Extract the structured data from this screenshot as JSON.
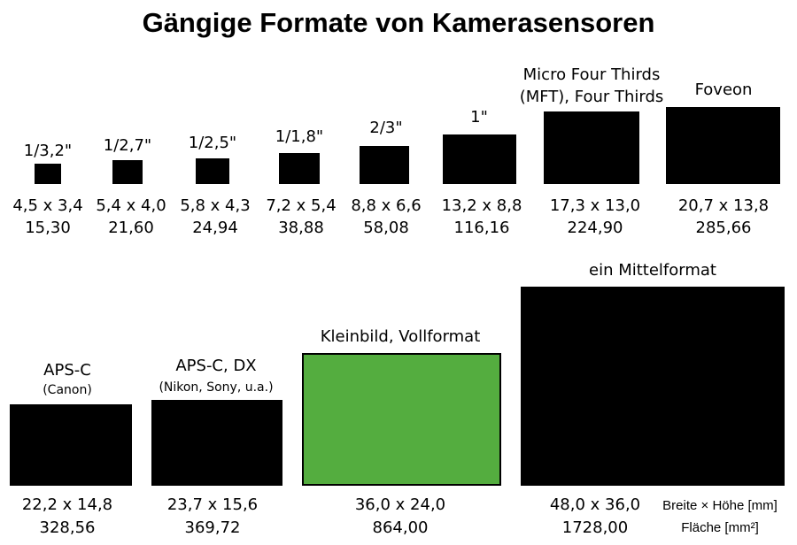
{
  "title": "Gängige Formate von Kamerasensoren",
  "sensors": [
    {
      "name": "1/3,2\"",
      "dims": "4,5 x 3,4",
      "area": "15,30"
    },
    {
      "name": "1/2,7\"",
      "dims": "5,4 x 4,0",
      "area": "21,60"
    },
    {
      "name": "1/2,5\"",
      "dims": "5,8 x 4,3",
      "area": "24,94"
    },
    {
      "name": "1/1,8\"",
      "dims": "7,2 x 5,4",
      "area": "38,88"
    },
    {
      "name": "2/3\"",
      "dims": "8,8 x 6,6",
      "area": "58,08"
    },
    {
      "name": "1\"",
      "dims": "13,2 x 8,8",
      "area": "116,16"
    },
    {
      "name": "Micro Four Thirds",
      "subname": "(MFT), Four Thirds",
      "dims": "17,3 x 13,0",
      "area": "224,90"
    },
    {
      "name": "Foveon",
      "dims": "20,7 x 13,8",
      "area": "285,66"
    },
    {
      "name": "APS-C",
      "subname": "(Canon)",
      "dims": "22,2 x 14,8",
      "area": "328,56"
    },
    {
      "name": "APS-C, DX",
      "subname": "(Nikon, Sony, u.a.)",
      "dims": "23,7 x 15,6",
      "area": "369,72"
    },
    {
      "name": "Kleinbild, Vollformat",
      "dims": "36,0 x 24,0",
      "area": "864,00"
    },
    {
      "name": "ein Mittelformat",
      "dims": "48,0 x 36,0",
      "area": "1728,00"
    }
  ],
  "legend": {
    "dims": "Breite × Höhe [mm]",
    "area": "Fläche [mm²]"
  }
}
